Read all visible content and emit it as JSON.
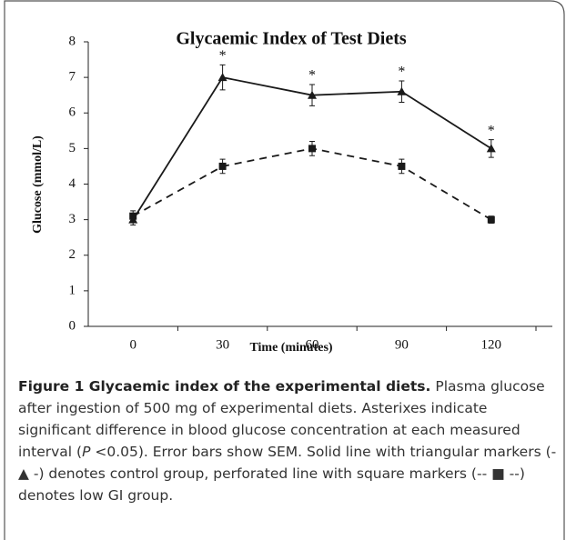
{
  "chart_data": {
    "type": "line",
    "title": "Glycaemic Index of Test Diets",
    "x_label": "Time (minutes)",
    "y_label": "Glucose (mmol/L)",
    "categories": [
      "0",
      "30",
      "60",
      "90",
      "120"
    ],
    "series": [
      {
        "name": "Control group",
        "color": "#1a1a1a",
        "dash": false,
        "marker": "triangle",
        "values": [
          3.0,
          7.0,
          6.5,
          6.6,
          5.0
        ],
        "errors": [
          0.15,
          0.35,
          0.3,
          0.3,
          0.25
        ]
      },
      {
        "name": "Low GI group",
        "color": "#1a1a1a",
        "dash": true,
        "marker": "square",
        "values": [
          3.1,
          4.5,
          5.0,
          4.5,
          3.0
        ],
        "errors": [
          0.15,
          0.2,
          0.2,
          0.2,
          0.1
        ]
      }
    ],
    "significance": [
      null,
      "*",
      "*",
      "*",
      "*"
    ],
    "ylim": [
      0,
      8
    ],
    "yticks": [
      0,
      1,
      2,
      3,
      4,
      5,
      6,
      7,
      8
    ],
    "grid": false
  },
  "caption": {
    "title": "Figure 1 Glycaemic index of the experimental diets.",
    "body_1": "Plasma glucose after ingestion of 500 mg of experimental diets. Asterixes indicate significant difference in blood glucose concentration at each measured interval (",
    "p_symbol": "P",
    "body_2": " <0.05). Error bars show SEM. Solid line with triangular markers (-▲ -) denotes control group, perforated line with square markers (-- ■ --) denotes low GI group."
  }
}
